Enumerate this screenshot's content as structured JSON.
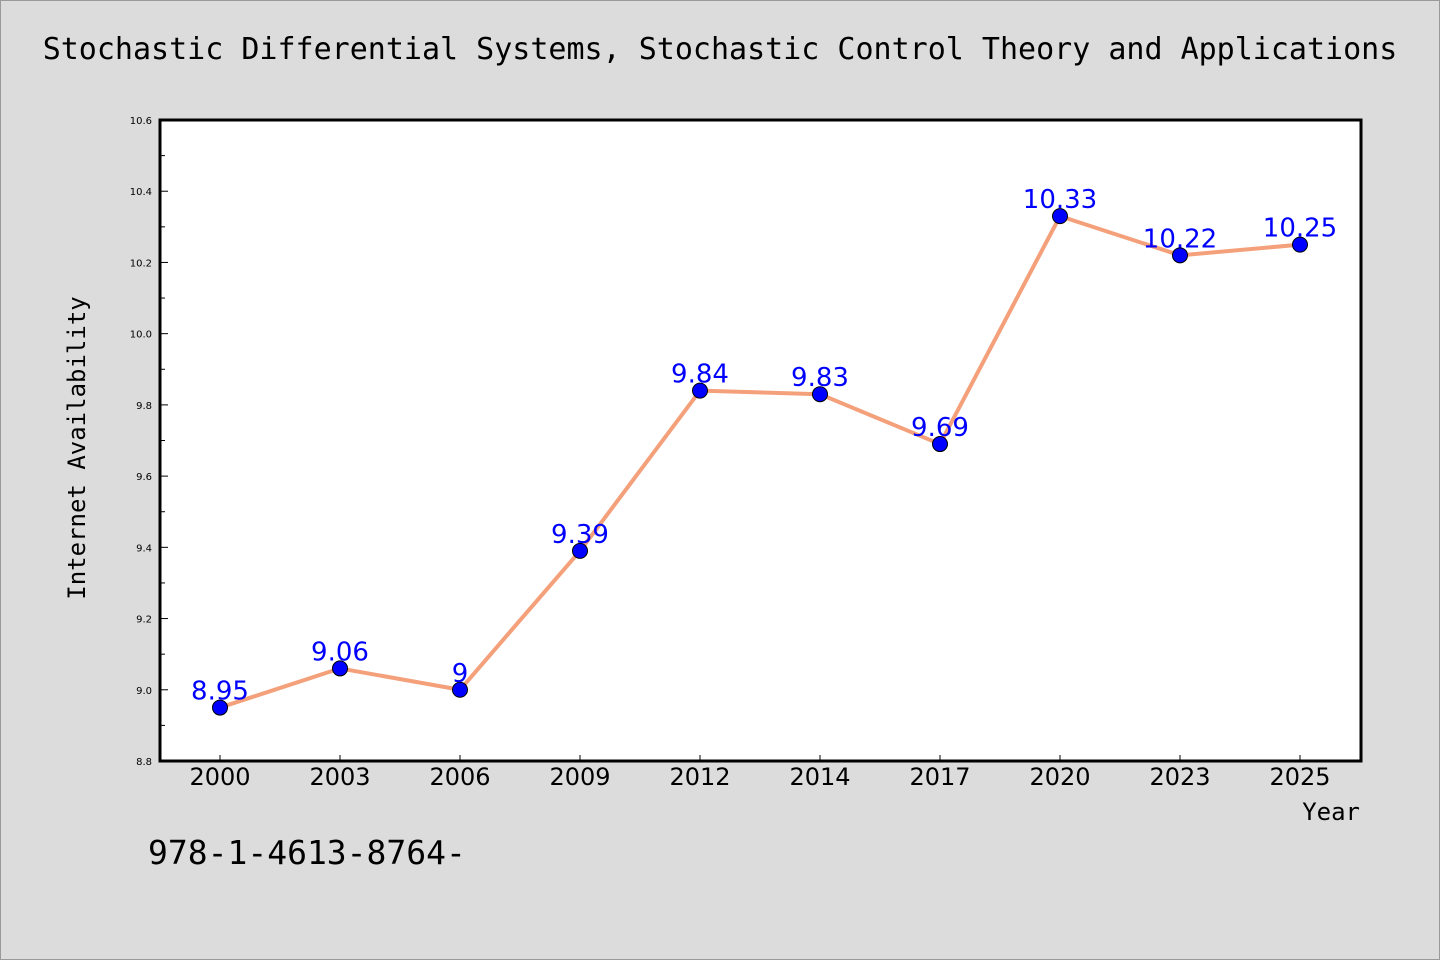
{
  "chart_data": {
    "type": "line",
    "title": "Stochastic Differential Systems, Stochastic Control Theory and Applications",
    "xlabel": "Year",
    "ylabel": "Internet Availability",
    "categories": [
      "2000",
      "2003",
      "2006",
      "2009",
      "2012",
      "2014",
      "2017",
      "2020",
      "2023",
      "2025"
    ],
    "series": [
      {
        "values": [
          8.95,
          9.06,
          9.0,
          9.39,
          9.84,
          9.83,
          9.69,
          10.33,
          10.22,
          10.25
        ],
        "labels": [
          "8.95",
          "9.06",
          "9",
          "9.39",
          "9.84",
          "9.83",
          "9.69",
          "10.33",
          "10.22",
          "10.25"
        ]
      }
    ],
    "ylim": [
      8.8,
      10.6
    ],
    "yticks": [
      "8.8",
      "9.0",
      "9.2",
      "9.4",
      "9.6",
      "9.8",
      "10.0",
      "10.2",
      "10.4",
      "10.6"
    ],
    "grid": false,
    "colors": {
      "line": "#f4a07a",
      "marker": "#0000ff",
      "data_label": "#0000ff",
      "background": "#dcdcdc",
      "plot_background": "#ffffff"
    }
  },
  "footnote": "978-1-4613-8764-"
}
